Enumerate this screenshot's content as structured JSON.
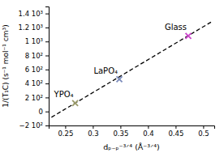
{
  "chart_data": {
    "type": "scatter",
    "xlabel": "dₚ₋ₚ⁻³ᐟ⁴ (Å⁻³ᐟ⁴)",
    "ylabel": "1/(T₁C) (s⁻¹ mol⁻¹ cm³)",
    "xlim": [
      0.22,
      0.52
    ],
    "ylim": [
      -200,
      1500
    ],
    "xticks": [
      0.25,
      0.3,
      0.35,
      0.4,
      0.45,
      0.5
    ],
    "yticks": [
      {
        "value": -200,
        "label": "−2 10²"
      },
      0,
      {
        "value": 200,
        "label": "2 10²"
      },
      {
        "value": 400,
        "label": "4 10²"
      },
      {
        "value": 600,
        "label": "6 10²"
      },
      {
        "value": 800,
        "label": "8 10²"
      },
      {
        "value": 1000,
        "label": "1 10³"
      },
      {
        "value": 1200,
        "label": "1.2 10³"
      },
      {
        "value": 1400,
        "label": "1.4 10³"
      }
    ],
    "grid": false,
    "series": [
      {
        "type": "scatter",
        "marker": "x",
        "colors": [
          "#9B9B6B",
          "#7B8BBB",
          "#CC44CC"
        ],
        "x": [
          0.268,
          0.348,
          0.473
        ],
        "values": [
          120,
          460,
          1080
        ]
      },
      {
        "type": "line",
        "line_style": "dashed",
        "color": "black",
        "x": [
          0.225,
          0.515
        ],
        "values": [
          -82.5,
          1280.5
        ]
      }
    ],
    "annotations": [
      "YPO₄",
      "LaPO₄",
      "Glass"
    ]
  }
}
